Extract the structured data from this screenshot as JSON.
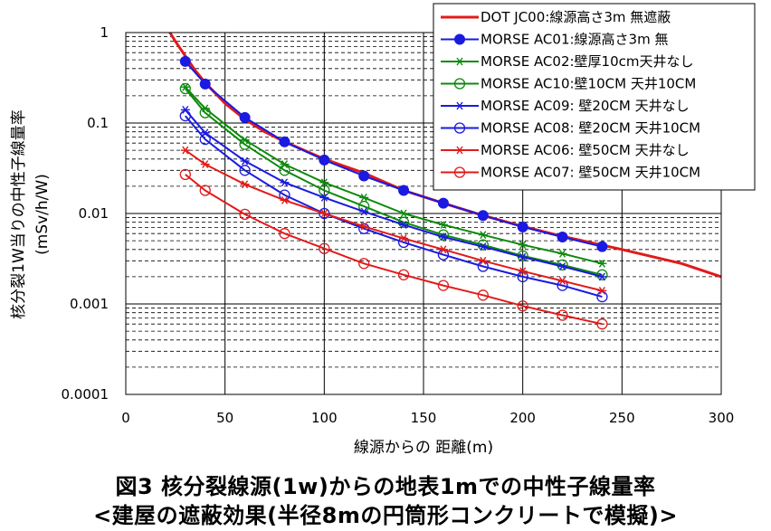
{
  "chart_data": {
    "type": "line",
    "yscale": "log",
    "xlabel": "線源からの 距離(m)",
    "ylabel_line1": "核分裂1W当りの中性子線量率",
    "ylabel_line2": "(mSv/h/W)",
    "xlim": [
      0,
      300
    ],
    "ylim": [
      0.0001,
      1
    ],
    "xticks": [
      "0",
      "50",
      "100",
      "150",
      "200",
      "250",
      "300"
    ],
    "yticks": [
      "0.0001",
      "0.001",
      "0.01",
      "0.1",
      "1"
    ],
    "grid": true,
    "legend_position": "top-right",
    "series": [
      {
        "name": "DOT JC00:線源高さ3m 無遮蔽",
        "color": "#e21a1a",
        "marker": "none",
        "x": [
          20,
          25,
          30,
          35,
          40,
          50,
          60,
          70,
          80,
          100,
          120,
          140,
          160,
          180,
          200,
          220,
          250,
          280,
          300
        ],
        "y": [
          1.2,
          0.8,
          0.55,
          0.38,
          0.28,
          0.165,
          0.11,
          0.08,
          0.062,
          0.04,
          0.028,
          0.018,
          0.013,
          0.0095,
          0.0072,
          0.0056,
          0.004,
          0.0028,
          0.002
        ]
      },
      {
        "name": "MORSE AC01:線源高さ3m 無",
        "color": "#1a1ae0",
        "marker": "filled-circle",
        "x": [
          30,
          40,
          60,
          80,
          100,
          120,
          140,
          160,
          180,
          200,
          220,
          240
        ],
        "y": [
          0.48,
          0.27,
          0.115,
          0.062,
          0.039,
          0.026,
          0.018,
          0.013,
          0.0095,
          0.0071,
          0.0055,
          0.0043
        ]
      },
      {
        "name": "MORSE AC02:壁厚10cm天井なし",
        "color": "#0d8a0d",
        "marker": "asterisk",
        "x": [
          30,
          40,
          60,
          80,
          100,
          120,
          140,
          160,
          180,
          200,
          220,
          240
        ],
        "y": [
          0.25,
          0.145,
          0.065,
          0.035,
          0.022,
          0.015,
          0.01,
          0.0075,
          0.0058,
          0.0045,
          0.0036,
          0.0028
        ]
      },
      {
        "name": "MORSE AC10:壁10CM 天井10CM",
        "color": "#0d8a0d",
        "marker": "open-circle",
        "x": [
          30,
          40,
          60,
          80,
          100,
          120,
          140,
          160,
          180,
          200,
          220,
          240
        ],
        "y": [
          0.24,
          0.13,
          0.058,
          0.03,
          0.018,
          0.012,
          0.008,
          0.0058,
          0.0045,
          0.0034,
          0.0027,
          0.0021
        ]
      },
      {
        "name": "MORSE AC09: 壁20CM 天井なし",
        "color": "#1a1ae0",
        "marker": "asterisk",
        "x": [
          30,
          40,
          60,
          80,
          100,
          120,
          140,
          160,
          180,
          200,
          220,
          240
        ],
        "y": [
          0.14,
          0.078,
          0.038,
          0.022,
          0.015,
          0.0105,
          0.0075,
          0.0055,
          0.0043,
          0.0033,
          0.0026,
          0.002
        ]
      },
      {
        "name": "MORSE AC08: 壁20CM 天井10CM",
        "color": "#1a1ae0",
        "marker": "open-circle",
        "x": [
          30,
          40,
          60,
          80,
          100,
          120,
          140,
          160,
          180,
          200,
          220,
          240
        ],
        "y": [
          0.12,
          0.066,
          0.03,
          0.016,
          0.01,
          0.0068,
          0.0048,
          0.0035,
          0.0026,
          0.002,
          0.0016,
          0.0012
        ]
      },
      {
        "name": "MORSE AC06: 壁50CM 天井なし",
        "color": "#e21a1a",
        "marker": "asterisk",
        "x": [
          30,
          40,
          60,
          80,
          100,
          120,
          140,
          160,
          180,
          200,
          220,
          240
        ],
        "y": [
          0.05,
          0.035,
          0.021,
          0.014,
          0.01,
          0.0072,
          0.0053,
          0.004,
          0.003,
          0.0023,
          0.0018,
          0.0014
        ]
      },
      {
        "name": "MORSE AC07: 壁50CM 天井10CM",
        "color": "#e21a1a",
        "marker": "open-circle",
        "x": [
          30,
          40,
          60,
          80,
          100,
          120,
          140,
          160,
          180,
          200,
          220,
          240
        ],
        "y": [
          0.027,
          0.018,
          0.0098,
          0.006,
          0.0041,
          0.0028,
          0.0021,
          0.0016,
          0.00125,
          0.00095,
          0.00075,
          0.0006
        ]
      }
    ]
  },
  "caption": {
    "line1": "図3 核分裂線源(1w)からの地表1mでの中性子線量率",
    "line2": "<建屋の遮蔽効果(半径8mの円筒形コンクリートで模擬)>"
  }
}
